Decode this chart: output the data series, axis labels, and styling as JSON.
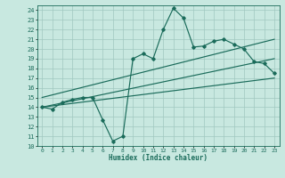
{
  "xlabel": "Humidex (Indice chaleur)",
  "bg_color": "#c8e8e0",
  "line_color": "#1a6b5a",
  "grid_color": "#a0c8c0",
  "xlim": [
    -0.5,
    23.5
  ],
  "ylim": [
    10,
    24.5
  ],
  "xticks": [
    0,
    1,
    2,
    3,
    4,
    5,
    6,
    7,
    8,
    9,
    10,
    11,
    12,
    13,
    14,
    15,
    16,
    17,
    18,
    19,
    20,
    21,
    22,
    23
  ],
  "yticks": [
    10,
    11,
    12,
    13,
    14,
    15,
    16,
    17,
    18,
    19,
    20,
    21,
    22,
    23,
    24
  ],
  "data_x": [
    0,
    1,
    2,
    3,
    4,
    5,
    6,
    7,
    8,
    9,
    10,
    11,
    12,
    13,
    14,
    15,
    16,
    17,
    18,
    19,
    20,
    21,
    22,
    23
  ],
  "data_y": [
    14,
    13.8,
    14.5,
    14.8,
    15,
    15,
    12.7,
    10.5,
    11,
    19,
    19.5,
    19,
    22,
    24.2,
    23.2,
    20.2,
    20.3,
    20.8,
    21,
    20.5,
    20,
    18.7,
    18.5,
    17.5
  ],
  "line1_x": [
    0,
    23
  ],
  "line1_y": [
    14.0,
    17.0
  ],
  "line2_x": [
    0,
    23
  ],
  "line2_y": [
    14.0,
    19.0
  ],
  "line3_x": [
    0,
    23
  ],
  "line3_y": [
    15.0,
    21.0
  ]
}
